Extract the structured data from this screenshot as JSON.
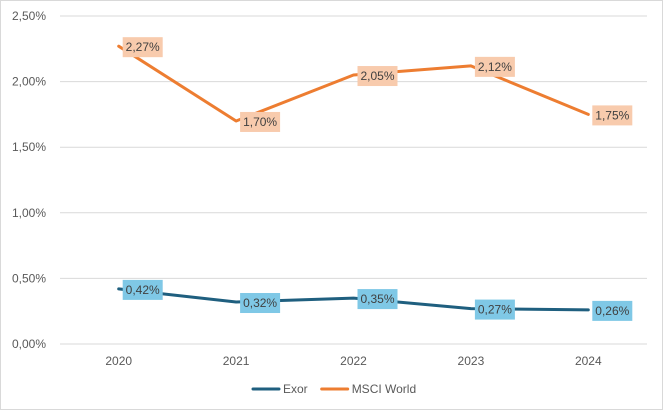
{
  "chart_data": {
    "type": "line",
    "title": "",
    "xlabel": "",
    "ylabel": "",
    "categories": [
      "2020",
      "2021",
      "2022",
      "2023",
      "2024"
    ],
    "ylim": [
      0,
      0.025
    ],
    "y_ticks": [
      {
        "value": 0,
        "label": "0,00%"
      },
      {
        "value": 0.005,
        "label": "0,50%"
      },
      {
        "value": 0.01,
        "label": "1,00%"
      },
      {
        "value": 0.015,
        "label": "1,50%"
      },
      {
        "value": 0.02,
        "label": "2,00%"
      },
      {
        "value": 0.025,
        "label": "2,50%"
      }
    ],
    "grid": true,
    "legend_position": "bottom",
    "series": [
      {
        "name": "Exor",
        "color": "#1f5f7f",
        "label_bg": "#7fc8e6",
        "values": [
          0.0042,
          0.0032,
          0.0035,
          0.0027,
          0.0026
        ],
        "labels": [
          "0,42%",
          "0,32%",
          "0,35%",
          "0,27%",
          "0,26%"
        ]
      },
      {
        "name": "MSCI World",
        "color": "#ed7d31",
        "label_bg": "#f8cbad",
        "values": [
          0.0227,
          0.017,
          0.0205,
          0.0212,
          0.0175
        ],
        "labels": [
          "2,27%",
          "1,70%",
          "2,05%",
          "2,12%",
          "1,75%"
        ]
      }
    ]
  }
}
